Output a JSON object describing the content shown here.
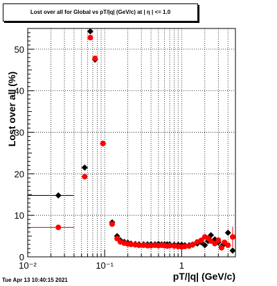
{
  "chart_data": {
    "type": "scatter",
    "title": "Lost over all for Global vs pT/|q| (GeV/c) at |  η | <= 1.0",
    "xlabel": "pT/|q| (GeV/c)",
    "ylabel": "Lost over all (%)",
    "xscale": "log",
    "xlim": [
      0.01,
      5
    ],
    "ylim": [
      0,
      55
    ],
    "x_ticks": [
      {
        "value": 0.01,
        "label": "10⁻²"
      },
      {
        "value": 0.1,
        "label": "10⁻¹"
      },
      {
        "value": 1,
        "label": "1"
      }
    ],
    "y_ticks": [
      0,
      10,
      20,
      30,
      40,
      50
    ],
    "grid": true,
    "series": [
      {
        "color": "#000000",
        "marker": "diamond",
        "points": [
          {
            "x": 0.025,
            "y": 14.8,
            "xerr_lo": 0.015,
            "xerr_hi": 0.015
          },
          {
            "x": 0.055,
            "y": 21.5,
            "xerr_lo": 0.005,
            "xerr_hi": 0.005
          },
          {
            "x": 0.065,
            "y": 54.3
          },
          {
            "x": 0.075,
            "y": 47.5
          },
          {
            "x": 0.095,
            "y": 27.3,
            "xerr_lo": 0.005,
            "xerr_hi": 0.005
          },
          {
            "x": 0.125,
            "y": 8.3
          },
          {
            "x": 0.145,
            "y": 5.0
          },
          {
            "x": 0.16,
            "y": 4.0
          },
          {
            "x": 0.18,
            "y": 3.6
          },
          {
            "x": 0.2,
            "y": 3.4
          },
          {
            "x": 0.22,
            "y": 3.2
          },
          {
            "x": 0.25,
            "y": 3.1
          },
          {
            "x": 0.28,
            "y": 3.0
          },
          {
            "x": 0.32,
            "y": 3.0
          },
          {
            "x": 0.36,
            "y": 3.0
          },
          {
            "x": 0.4,
            "y": 3.0
          },
          {
            "x": 0.45,
            "y": 3.0
          },
          {
            "x": 0.5,
            "y": 3.1
          },
          {
            "x": 0.55,
            "y": 3.0
          },
          {
            "x": 0.6,
            "y": 3.0
          },
          {
            "x": 0.65,
            "y": 3.0
          },
          {
            "x": 0.7,
            "y": 3.0
          },
          {
            "x": 0.8,
            "y": 2.9
          },
          {
            "x": 0.9,
            "y": 2.9
          },
          {
            "x": 1.0,
            "y": 2.9
          },
          {
            "x": 1.1,
            "y": 2.8
          },
          {
            "x": 1.25,
            "y": 2.8
          },
          {
            "x": 1.4,
            "y": 2.9
          },
          {
            "x": 1.6,
            "y": 3.2
          },
          {
            "x": 1.8,
            "y": 3.5
          },
          {
            "x": 2.0,
            "y": 2.8
          },
          {
            "x": 2.2,
            "y": 3.8
          },
          {
            "x": 2.4,
            "y": 5.2
          },
          {
            "x": 2.7,
            "y": 4.2
          },
          {
            "x": 3.0,
            "y": 3.5
          },
          {
            "x": 3.3,
            "y": 2.5
          },
          {
            "x": 3.6,
            "y": 3.2
          },
          {
            "x": 4.0,
            "y": 5.8
          },
          {
            "x": 4.6,
            "y": 1.5
          }
        ]
      },
      {
        "color": "#ff0000",
        "marker": "circle",
        "points": [
          {
            "x": 0.025,
            "y": 7.1,
            "xerr_lo": 0.015,
            "xerr_hi": 0.015
          },
          {
            "x": 0.055,
            "y": 19.3,
            "xerr_lo": 0.005,
            "xerr_hi": 0.005
          },
          {
            "x": 0.065,
            "y": 52.8
          },
          {
            "x": 0.075,
            "y": 47.8
          },
          {
            "x": 0.095,
            "y": 27.3,
            "xerr_lo": 0.005,
            "xerr_hi": 0.005
          },
          {
            "x": 0.125,
            "y": 7.9
          },
          {
            "x": 0.145,
            "y": 4.4
          },
          {
            "x": 0.16,
            "y": 3.6
          },
          {
            "x": 0.18,
            "y": 3.3
          },
          {
            "x": 0.2,
            "y": 3.1
          },
          {
            "x": 0.22,
            "y": 3.0
          },
          {
            "x": 0.25,
            "y": 2.9
          },
          {
            "x": 0.28,
            "y": 2.8
          },
          {
            "x": 0.32,
            "y": 2.8
          },
          {
            "x": 0.36,
            "y": 2.7
          },
          {
            "x": 0.4,
            "y": 2.7
          },
          {
            "x": 0.45,
            "y": 2.8
          },
          {
            "x": 0.5,
            "y": 2.7
          },
          {
            "x": 0.55,
            "y": 2.8
          },
          {
            "x": 0.6,
            "y": 2.7
          },
          {
            "x": 0.65,
            "y": 2.6
          },
          {
            "x": 0.7,
            "y": 2.7
          },
          {
            "x": 0.8,
            "y": 2.6
          },
          {
            "x": 0.9,
            "y": 2.5
          },
          {
            "x": 1.0,
            "y": 2.4
          },
          {
            "x": 1.1,
            "y": 2.5
          },
          {
            "x": 1.25,
            "y": 2.6
          },
          {
            "x": 1.4,
            "y": 3.0
          },
          {
            "x": 1.6,
            "y": 3.6
          },
          {
            "x": 1.8,
            "y": 4.0
          },
          {
            "x": 2.0,
            "y": 4.8
          },
          {
            "x": 2.2,
            "y": 4.5
          },
          {
            "x": 2.4,
            "y": 3.8
          },
          {
            "x": 2.7,
            "y": 3.2
          },
          {
            "x": 3.0,
            "y": 4.0
          },
          {
            "x": 3.3,
            "y": 2.2
          },
          {
            "x": 3.6,
            "y": 3.5
          },
          {
            "x": 4.0,
            "y": 2.8
          },
          {
            "x": 4.6,
            "y": 4.8,
            "yerr": 2.5
          }
        ]
      }
    ]
  },
  "footer": {
    "timestamp": "Tue Apr 13 10:40:15 2021"
  }
}
